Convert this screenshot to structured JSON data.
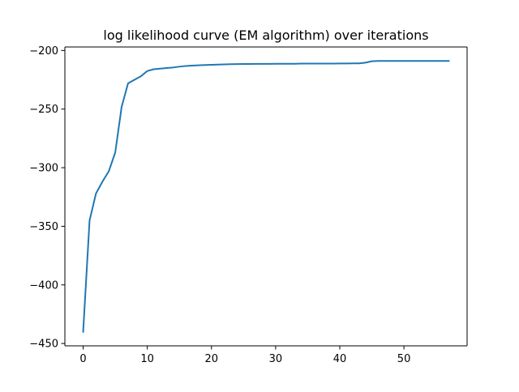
{
  "chart_data": {
    "type": "line",
    "title": "log likelihood curve (EM algorithm) over iterations",
    "xlabel": "",
    "ylabel": "",
    "xlim": [
      -2.85,
      59.85
    ],
    "ylim": [
      -452,
      -197
    ],
    "x_ticks": [
      0,
      10,
      20,
      30,
      40,
      50
    ],
    "y_ticks": [
      -200,
      -250,
      -300,
      -350,
      -400,
      -450
    ],
    "x_tick_labels": [
      "0",
      "10",
      "20",
      "30",
      "40",
      "50"
    ],
    "y_tick_labels": [
      "−200",
      "−250",
      "−300",
      "−350",
      "−400",
      "−450"
    ],
    "grid": false,
    "legend": "none",
    "series": [
      {
        "color": "#1f77b4",
        "x": [
          0,
          1,
          2,
          3,
          4,
          5,
          6,
          7,
          8,
          9,
          10,
          11,
          12,
          13,
          14,
          15,
          16,
          17,
          18,
          19,
          20,
          21,
          22,
          23,
          24,
          25,
          26,
          27,
          28,
          29,
          30,
          31,
          32,
          33,
          34,
          35,
          36,
          37,
          38,
          39,
          40,
          41,
          42,
          43,
          44,
          45,
          46,
          47,
          48,
          49,
          50,
          51,
          52,
          53,
          54,
          55,
          56,
          57
        ],
        "y": [
          -440,
          -345,
          -322,
          -312,
          -303,
          -287,
          -248,
          -228,
          -225,
          -222,
          -217.5,
          -216,
          -215.5,
          -215,
          -214.5,
          -213.8,
          -213.2,
          -212.9,
          -212.6,
          -212.4,
          -212.2,
          -212,
          -211.9,
          -211.7,
          -211.6,
          -211.5,
          -211.5,
          -211.4,
          -211.4,
          -211.4,
          -211.3,
          -211.3,
          -211.3,
          -211.3,
          -211.2,
          -211.2,
          -211.2,
          -211.2,
          -211.2,
          -211.2,
          -211.1,
          -211.1,
          -211,
          -211,
          -210.4,
          -209.2,
          -208.9,
          -208.9,
          -208.9,
          -208.9,
          -208.9,
          -208.9,
          -208.9,
          -208.9,
          -208.9,
          -208.9,
          -208.9,
          -208.9
        ]
      }
    ]
  }
}
